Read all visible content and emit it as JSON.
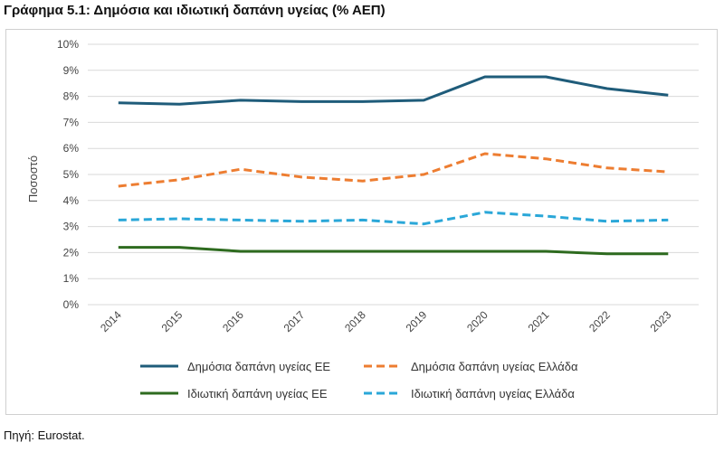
{
  "header": {
    "title": "Γράφημα 5.1: Δημόσια και ιδιωτική δαπάνη υγείας (% ΑΕΠ)"
  },
  "footer": {
    "source": "Πηγή: Eurostat."
  },
  "chart_data": {
    "type": "line",
    "title": "Γράφημα 5.1: Δημόσια και ιδιωτική δαπάνη υγείας (% ΑΕΠ)",
    "xlabel": "",
    "ylabel": "Ποσοστό",
    "x": [
      "2014",
      "2015",
      "2016",
      "2017",
      "2018",
      "2019",
      "2020",
      "2021",
      "2022",
      "2023"
    ],
    "ylim": [
      0,
      10
    ],
    "yticks": [
      "0%",
      "1%",
      "2%",
      "3%",
      "4%",
      "5%",
      "6%",
      "7%",
      "8%",
      "9%",
      "10%"
    ],
    "grid": true,
    "legend_position": "bottom",
    "series": [
      {
        "name": "Δημόσια δαπάνη υγείας ΕΕ",
        "color": "#1f5c7a",
        "dash": "solid",
        "values": [
          7.75,
          7.7,
          7.85,
          7.8,
          7.8,
          7.85,
          8.75,
          8.75,
          8.3,
          8.05
        ]
      },
      {
        "name": "Δημόσια δαπάνη υγείας Ελλάδα",
        "color": "#ed7d31",
        "dash": "dashed",
        "values": [
          4.55,
          4.8,
          5.2,
          4.9,
          4.75,
          5.0,
          5.8,
          5.6,
          5.25,
          5.1
        ]
      },
      {
        "name": "Ιδιωτική δαπάνη υγείας ΕΕ",
        "color": "#2e6b1f",
        "dash": "solid",
        "values": [
          2.2,
          2.2,
          2.05,
          2.05,
          2.05,
          2.05,
          2.05,
          2.05,
          1.95,
          1.95
        ]
      },
      {
        "name": "Ιδιωτική δαπάνη υγείας Ελλάδα",
        "color": "#2aa7d8",
        "dash": "dashed",
        "values": [
          3.25,
          3.3,
          3.25,
          3.2,
          3.25,
          3.1,
          3.55,
          3.4,
          3.2,
          3.25
        ]
      }
    ]
  }
}
